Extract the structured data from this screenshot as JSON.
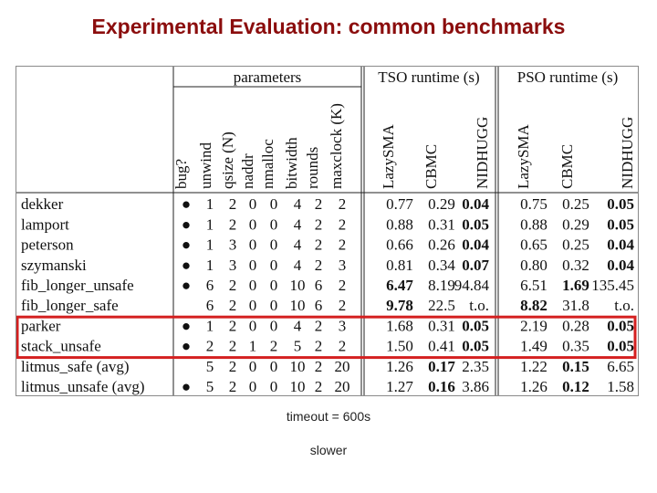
{
  "title": "Experimental Evaluation: common benchmarks",
  "table": {
    "group_headers": {
      "parameters": "parameters",
      "tso": "TSO runtime (s)",
      "pso": "PSO runtime (s)"
    },
    "param_headers": [
      "bug?",
      "unwind",
      "qsize (N)",
      "naddr",
      "nmalloc",
      "bitwidth",
      "rounds",
      "maxclock (K)"
    ],
    "tool_headers": [
      "LazySMA",
      "CBMC",
      "NIDHUGG"
    ],
    "rows": [
      {
        "name": "dekker",
        "bug": "●",
        "params": [
          "1",
          "2",
          "0",
          "0",
          "4",
          "2",
          "2"
        ],
        "tso": [
          "0.77",
          "0.29",
          "0.04"
        ],
        "pso": [
          "0.75",
          "0.25",
          "0.05"
        ],
        "tso_bold": [
          false,
          false,
          true
        ],
        "pso_bold": [
          false,
          false,
          true
        ],
        "highlight": false
      },
      {
        "name": "lamport",
        "bug": "●",
        "params": [
          "1",
          "2",
          "0",
          "0",
          "4",
          "2",
          "2"
        ],
        "tso": [
          "0.88",
          "0.31",
          "0.05"
        ],
        "pso": [
          "0.88",
          "0.29",
          "0.05"
        ],
        "tso_bold": [
          false,
          false,
          true
        ],
        "pso_bold": [
          false,
          false,
          true
        ],
        "highlight": false
      },
      {
        "name": "peterson",
        "bug": "●",
        "params": [
          "1",
          "3",
          "0",
          "0",
          "4",
          "2",
          "2"
        ],
        "tso": [
          "0.66",
          "0.26",
          "0.04"
        ],
        "pso": [
          "0.65",
          "0.25",
          "0.04"
        ],
        "tso_bold": [
          false,
          false,
          true
        ],
        "pso_bold": [
          false,
          false,
          true
        ],
        "highlight": false
      },
      {
        "name": "szymanski",
        "bug": "●",
        "params": [
          "1",
          "3",
          "0",
          "0",
          "4",
          "2",
          "3"
        ],
        "tso": [
          "0.81",
          "0.34",
          "0.07"
        ],
        "pso": [
          "0.80",
          "0.32",
          "0.04"
        ],
        "tso_bold": [
          false,
          false,
          true
        ],
        "pso_bold": [
          false,
          false,
          true
        ],
        "highlight": false
      },
      {
        "name": "fib_longer_unsafe",
        "bug": "●",
        "params": [
          "6",
          "2",
          "0",
          "0",
          "10",
          "6",
          "2"
        ],
        "tso": [
          "6.47",
          "8.19",
          "94.84"
        ],
        "pso": [
          "6.51",
          "1.69",
          "135.45"
        ],
        "tso_bold": [
          true,
          false,
          false
        ],
        "pso_bold": [
          false,
          true,
          false
        ],
        "highlight": false
      },
      {
        "name": "fib_longer_safe",
        "bug": "",
        "params": [
          "6",
          "2",
          "0",
          "0",
          "10",
          "6",
          "2"
        ],
        "tso": [
          "9.78",
          "22.5",
          "t.o."
        ],
        "pso": [
          "8.82",
          "31.8",
          "t.o."
        ],
        "tso_bold": [
          true,
          false,
          false
        ],
        "pso_bold": [
          true,
          false,
          false
        ],
        "highlight": false
      },
      {
        "name": "parker",
        "bug": "●",
        "params": [
          "1",
          "2",
          "0",
          "0",
          "4",
          "2",
          "3"
        ],
        "tso": [
          "1.68",
          "0.31",
          "0.05"
        ],
        "pso": [
          "2.19",
          "0.28",
          "0.05"
        ],
        "tso_bold": [
          false,
          false,
          true
        ],
        "pso_bold": [
          false,
          false,
          true
        ],
        "highlight": true
      },
      {
        "name": "stack_unsafe",
        "bug": "●",
        "params": [
          "2",
          "2",
          "1",
          "2",
          "5",
          "2",
          "2"
        ],
        "tso": [
          "1.50",
          "0.41",
          "0.05"
        ],
        "pso": [
          "1.49",
          "0.35",
          "0.05"
        ],
        "tso_bold": [
          false,
          false,
          true
        ],
        "pso_bold": [
          false,
          false,
          true
        ],
        "highlight": true
      },
      {
        "name": "litmus_safe (avg)",
        "bug": "",
        "params": [
          "5",
          "2",
          "0",
          "0",
          "10",
          "2",
          "20"
        ],
        "tso": [
          "1.26",
          "0.17",
          "2.35"
        ],
        "pso": [
          "1.22",
          "0.15",
          "6.65"
        ],
        "tso_bold": [
          false,
          true,
          false
        ],
        "pso_bold": [
          false,
          true,
          false
        ],
        "highlight": false
      },
      {
        "name": "litmus_unsafe (avg)",
        "bug": "●",
        "params": [
          "5",
          "2",
          "0",
          "0",
          "10",
          "2",
          "20"
        ],
        "tso": [
          "1.27",
          "0.16",
          "3.86"
        ],
        "pso": [
          "1.26",
          "0.12",
          "1.58"
        ],
        "tso_bold": [
          false,
          true,
          false
        ],
        "pso_bold": [
          false,
          true,
          false
        ],
        "highlight": false
      }
    ],
    "highlight_color": "#d42020"
  },
  "notes": {
    "timeout": "timeout = 600s",
    "slower": "slower"
  }
}
